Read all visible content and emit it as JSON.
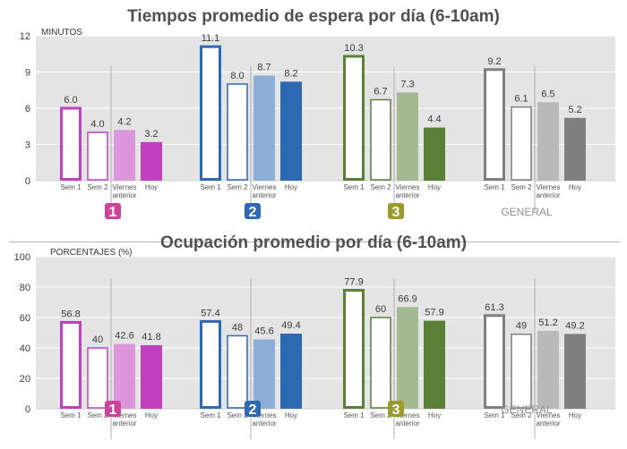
{
  "chart_data": [
    {
      "type": "bar",
      "title": "Tiempos promedio de espera por día (6-10am)",
      "ylabel": "MINUTOS",
      "ylim": [
        0,
        12
      ],
      "yticks": [
        0,
        3,
        6,
        9,
        12
      ],
      "categories": [
        "Sem 1",
        "Sem 2",
        "Viernes anterior",
        "Hoy"
      ],
      "category_lines": [
        [
          "Sem 1"
        ],
        [
          "Sem 2"
        ],
        [
          "Viernes",
          "anterior"
        ],
        [
          "Hoy"
        ]
      ],
      "grid": true,
      "groups": [
        {
          "label": "1",
          "color": "#c040c0",
          "badge_color": "#cc4499",
          "values": [
            6.0,
            4.0,
            4.2,
            3.2
          ],
          "labels": [
            "6.0",
            "4.0",
            "4.2",
            "3.2"
          ]
        },
        {
          "label": "2",
          "color": "#2e69b3",
          "badge_color": "#2e69b3",
          "values": [
            11.1,
            8.0,
            8.7,
            8.2
          ],
          "labels": [
            "11.1",
            "8.0",
            "8.7",
            "8.2"
          ]
        },
        {
          "label": "3",
          "color": "#5a7f37",
          "badge_color": "#9b9a2e",
          "values": [
            10.3,
            6.7,
            7.3,
            4.4
          ],
          "labels": [
            "10.3",
            "6.7",
            "7.3",
            "4.4"
          ]
        },
        {
          "label": "GENERAL",
          "color": "#7f7f7f",
          "badge_color": "",
          "values": [
            9.2,
            6.1,
            6.5,
            5.2
          ],
          "labels": [
            "9.2",
            "6.1",
            "6.5",
            "5.2"
          ]
        }
      ]
    },
    {
      "type": "bar",
      "title": "Ocupación promedio por día (6-10am)",
      "ylabel": "PORCENTAJES (%)",
      "ylim": [
        0,
        100
      ],
      "yticks": [
        0,
        20,
        40,
        60,
        80,
        100
      ],
      "categories": [
        "Sem 1",
        "Sem 2",
        "Viernes anterior",
        "Hoy"
      ],
      "category_lines": [
        [
          "Sem 1"
        ],
        [
          "Sem 2"
        ],
        [
          "Viernes",
          "anterior"
        ],
        [
          "Hoy"
        ]
      ],
      "grid": true,
      "groups": [
        {
          "label": "1",
          "color": "#c040c0",
          "badge_color": "#cc4499",
          "values": [
            56.8,
            40,
            42.6,
            41.8
          ],
          "labels": [
            "56.8",
            "40",
            "42.6",
            "41.8"
          ]
        },
        {
          "label": "2",
          "color": "#2e69b3",
          "badge_color": "#2e69b3",
          "values": [
            57.4,
            48,
            45.6,
            49.4
          ],
          "labels": [
            "57.4",
            "48",
            "45.6",
            "49.4"
          ]
        },
        {
          "label": "3",
          "color": "#5a7f37",
          "badge_color": "#9b9a2e",
          "values": [
            77.9,
            60,
            66.9,
            57.9
          ],
          "labels": [
            "77.9",
            "60",
            "66.9",
            "57.9"
          ]
        },
        {
          "label": "GENERAL",
          "color": "#7f7f7f",
          "badge_color": "",
          "values": [
            61.3,
            49,
            51.2,
            49.2
          ],
          "labels": [
            "61.3",
            "49",
            "51.2",
            "49.2"
          ]
        }
      ]
    }
  ]
}
